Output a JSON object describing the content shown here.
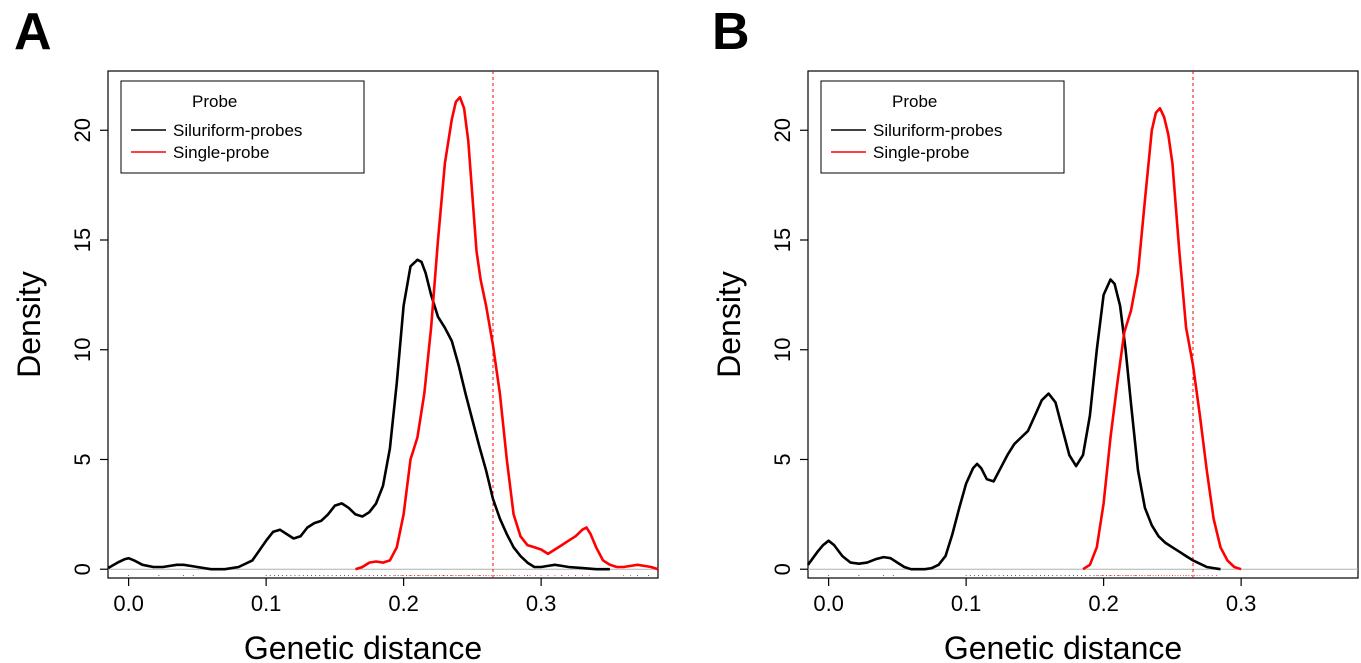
{
  "chart_data": [
    {
      "type": "line",
      "panel_label": "A",
      "xlabel": "Genetic distance",
      "ylabel": "Density",
      "xlim": [
        -0.015,
        0.385
      ],
      "ylim": [
        -0.4,
        22.7
      ],
      "x_ticks": [
        "0.0",
        "0.1",
        "0.2",
        "0.3"
      ],
      "y_ticks": [
        "0",
        "5",
        "10",
        "15",
        "20"
      ],
      "legend": {
        "title": "Probe",
        "position": "top-left",
        "entries": [
          {
            "label": "Siluriform-probes",
            "color": "#000000"
          },
          {
            "label": "Single-probe",
            "color": "#ff0000"
          }
        ]
      },
      "reference_line": {
        "x": 0.265,
        "color": "#ff0000",
        "style": "dashed"
      },
      "series": [
        {
          "name": "Siluriform-probes",
          "color": "#000000",
          "x": [
            -0.015,
            -0.008,
            -0.003,
            0.0,
            0.004,
            0.01,
            0.018,
            0.025,
            0.03,
            0.035,
            0.04,
            0.045,
            0.05,
            0.055,
            0.06,
            0.07,
            0.08,
            0.09,
            0.1,
            0.105,
            0.11,
            0.115,
            0.12,
            0.125,
            0.13,
            0.135,
            0.14,
            0.145,
            0.15,
            0.155,
            0.16,
            0.165,
            0.17,
            0.175,
            0.18,
            0.185,
            0.19,
            0.195,
            0.2,
            0.205,
            0.21,
            0.213,
            0.216,
            0.22,
            0.225,
            0.23,
            0.235,
            0.24,
            0.245,
            0.25,
            0.255,
            0.26,
            0.265,
            0.27,
            0.275,
            0.28,
            0.285,
            0.29,
            0.295,
            0.3,
            0.305,
            0.31,
            0.315,
            0.32,
            0.33,
            0.34,
            0.35
          ],
          "y": [
            0.05,
            0.3,
            0.45,
            0.5,
            0.4,
            0.2,
            0.1,
            0.1,
            0.15,
            0.2,
            0.2,
            0.15,
            0.1,
            0.05,
            0.0,
            0.0,
            0.1,
            0.4,
            1.3,
            1.7,
            1.8,
            1.6,
            1.4,
            1.5,
            1.9,
            2.1,
            2.2,
            2.5,
            2.9,
            3.0,
            2.8,
            2.5,
            2.4,
            2.6,
            3.0,
            3.8,
            5.5,
            8.5,
            12.0,
            13.8,
            14.1,
            14.0,
            13.5,
            12.5,
            11.5,
            11.0,
            10.4,
            9.3,
            8.0,
            6.8,
            5.6,
            4.5,
            3.2,
            2.3,
            1.6,
            1.0,
            0.6,
            0.3,
            0.1,
            0.1,
            0.15,
            0.2,
            0.15,
            0.1,
            0.05,
            0.0,
            0.0
          ]
        },
        {
          "name": "Single-probe",
          "color": "#ff0000",
          "x": [
            0.165,
            0.17,
            0.175,
            0.18,
            0.185,
            0.19,
            0.195,
            0.2,
            0.205,
            0.21,
            0.215,
            0.22,
            0.225,
            0.23,
            0.235,
            0.238,
            0.241,
            0.244,
            0.247,
            0.25,
            0.253,
            0.256,
            0.26,
            0.265,
            0.27,
            0.275,
            0.28,
            0.285,
            0.29,
            0.295,
            0.3,
            0.305,
            0.31,
            0.315,
            0.32,
            0.325,
            0.33,
            0.333,
            0.336,
            0.34,
            0.345,
            0.35,
            0.355,
            0.36,
            0.365,
            0.37,
            0.375,
            0.38,
            0.385
          ],
          "y": [
            0.0,
            0.1,
            0.3,
            0.35,
            0.3,
            0.4,
            1.0,
            2.5,
            5.0,
            6.0,
            8.0,
            11.0,
            15.0,
            18.5,
            20.5,
            21.3,
            21.5,
            21.0,
            19.5,
            17.0,
            14.5,
            13.2,
            12.0,
            10.2,
            8.0,
            5.0,
            2.5,
            1.5,
            1.1,
            1.0,
            0.9,
            0.7,
            0.9,
            1.1,
            1.3,
            1.5,
            1.8,
            1.9,
            1.6,
            1.0,
            0.4,
            0.2,
            0.1,
            0.1,
            0.15,
            0.2,
            0.15,
            0.1,
            0.0
          ]
        }
      ],
      "rug": {
        "black": [
          0.0,
          0.022,
          0.04,
          0.047,
          0.1,
          0.103,
          0.106,
          0.109,
          0.112,
          0.115,
          0.118,
          0.121,
          0.124,
          0.127,
          0.13,
          0.133,
          0.136,
          0.139,
          0.142,
          0.145,
          0.148,
          0.151,
          0.154,
          0.157,
          0.16,
          0.163,
          0.166,
          0.169,
          0.172,
          0.175,
          0.178,
          0.181,
          0.184,
          0.187,
          0.19,
          0.193,
          0.196,
          0.199,
          0.202,
          0.205,
          0.208,
          0.211,
          0.214,
          0.217,
          0.22,
          0.223,
          0.226,
          0.229,
          0.232,
          0.235,
          0.238,
          0.241,
          0.244,
          0.247,
          0.25,
          0.255,
          0.26,
          0.27,
          0.28,
          0.29,
          0.305,
          0.315,
          0.325,
          0.37,
          0.378
        ],
        "red": [
          0.175,
          0.186,
          0.19,
          0.194,
          0.198,
          0.2,
          0.202,
          0.204,
          0.206,
          0.208,
          0.21,
          0.212,
          0.214,
          0.216,
          0.218,
          0.22,
          0.222,
          0.224,
          0.226,
          0.228,
          0.23,
          0.232,
          0.234,
          0.236,
          0.238,
          0.24,
          0.242,
          0.244,
          0.246,
          0.248,
          0.25,
          0.252,
          0.254,
          0.256,
          0.258,
          0.26,
          0.262,
          0.264,
          0.266,
          0.268,
          0.27,
          0.272,
          0.275,
          0.278,
          0.281,
          0.284,
          0.288,
          0.292,
          0.296,
          0.3,
          0.305,
          0.31,
          0.315,
          0.32,
          0.325,
          0.33,
          0.335,
          0.36,
          0.365
        ]
      }
    },
    {
      "type": "line",
      "panel_label": "B",
      "xlabel": "Genetic distance",
      "ylabel": "Density",
      "xlim": [
        -0.015,
        0.385
      ],
      "ylim": [
        -0.4,
        22.7
      ],
      "x_ticks": [
        "0.0",
        "0.1",
        "0.2",
        "0.3"
      ],
      "y_ticks": [
        "0",
        "5",
        "10",
        "15",
        "20"
      ],
      "legend": {
        "title": "Probe",
        "position": "top-left",
        "entries": [
          {
            "label": "Siluriform-probes",
            "color": "#000000"
          },
          {
            "label": "Single-probe",
            "color": "#ff0000"
          }
        ]
      },
      "reference_line": {
        "x": 0.265,
        "color": "#ff0000",
        "style": "dashed"
      },
      "series": [
        {
          "name": "Siluriform-probes",
          "color": "#000000",
          "x": [
            -0.015,
            -0.008,
            -0.004,
            0.0,
            0.004,
            0.01,
            0.016,
            0.022,
            0.028,
            0.034,
            0.04,
            0.045,
            0.05,
            0.055,
            0.06,
            0.065,
            0.07,
            0.075,
            0.08,
            0.085,
            0.09,
            0.095,
            0.1,
            0.105,
            0.108,
            0.111,
            0.115,
            0.12,
            0.125,
            0.13,
            0.135,
            0.14,
            0.145,
            0.15,
            0.155,
            0.16,
            0.165,
            0.17,
            0.175,
            0.18,
            0.185,
            0.19,
            0.195,
            0.2,
            0.205,
            0.208,
            0.212,
            0.216,
            0.22,
            0.225,
            0.23,
            0.235,
            0.24,
            0.245,
            0.25,
            0.255,
            0.26,
            0.265,
            0.27,
            0.275,
            0.28,
            0.285
          ],
          "y": [
            0.2,
            0.8,
            1.1,
            1.3,
            1.1,
            0.6,
            0.3,
            0.25,
            0.3,
            0.45,
            0.55,
            0.5,
            0.3,
            0.1,
            0.0,
            0.0,
            0.0,
            0.05,
            0.2,
            0.6,
            1.6,
            2.8,
            3.9,
            4.6,
            4.8,
            4.6,
            4.1,
            4.0,
            4.6,
            5.2,
            5.7,
            6.0,
            6.3,
            7.0,
            7.7,
            8.0,
            7.6,
            6.4,
            5.2,
            4.7,
            5.2,
            7.0,
            10.0,
            12.5,
            13.2,
            13.0,
            12.0,
            10.0,
            7.5,
            4.5,
            2.8,
            2.0,
            1.5,
            1.2,
            1.0,
            0.8,
            0.6,
            0.4,
            0.25,
            0.1,
            0.05,
            0.0
          ]
        },
        {
          "name": "Single-probe",
          "color": "#ff0000",
          "x": [
            0.185,
            0.19,
            0.195,
            0.2,
            0.205,
            0.21,
            0.215,
            0.22,
            0.225,
            0.23,
            0.235,
            0.238,
            0.241,
            0.244,
            0.247,
            0.25,
            0.255,
            0.26,
            0.265,
            0.27,
            0.275,
            0.28,
            0.285,
            0.29,
            0.295,
            0.3
          ],
          "y": [
            0.0,
            0.2,
            1.0,
            3.0,
            6.0,
            8.5,
            10.8,
            11.8,
            13.5,
            16.8,
            20.0,
            20.8,
            21.0,
            20.6,
            19.8,
            18.5,
            14.5,
            11.0,
            9.3,
            7.0,
            4.5,
            2.3,
            1.0,
            0.4,
            0.1,
            0.0
          ]
        }
      ],
      "rug": {
        "black": [
          0.0,
          0.022,
          0.04,
          0.047,
          0.1,
          0.103,
          0.106,
          0.109,
          0.112,
          0.115,
          0.118,
          0.121,
          0.124,
          0.127,
          0.13,
          0.133,
          0.136,
          0.139,
          0.142,
          0.145,
          0.148,
          0.151,
          0.154,
          0.157,
          0.16,
          0.163,
          0.166,
          0.169,
          0.172,
          0.175,
          0.178,
          0.181,
          0.184,
          0.187,
          0.19,
          0.193,
          0.196,
          0.199,
          0.202,
          0.205,
          0.208,
          0.211,
          0.214,
          0.217,
          0.22,
          0.223,
          0.228,
          0.233,
          0.24,
          0.25,
          0.26
        ],
        "red": [
          0.195,
          0.198,
          0.2,
          0.202,
          0.204,
          0.206,
          0.208,
          0.21,
          0.212,
          0.214,
          0.216,
          0.218,
          0.22,
          0.222,
          0.224,
          0.226,
          0.228,
          0.23,
          0.232,
          0.234,
          0.236,
          0.238,
          0.24,
          0.242,
          0.244,
          0.246,
          0.248,
          0.25,
          0.252,
          0.254,
          0.256,
          0.258,
          0.26,
          0.262,
          0.264,
          0.266,
          0.268,
          0.27,
          0.273,
          0.276,
          0.279,
          0.282
        ]
      }
    }
  ]
}
